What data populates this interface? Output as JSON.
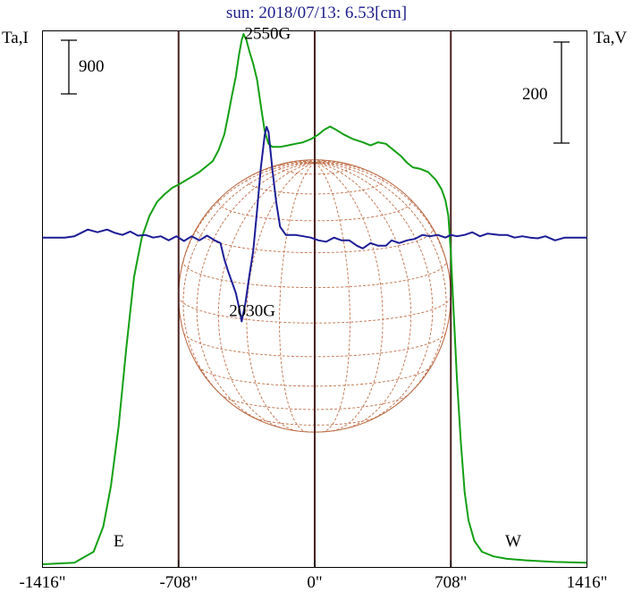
{
  "chart_data": {
    "type": "line",
    "title": "sun: 2018/07/13: 6.53[cm]",
    "left_axis_label": "Ta,I",
    "right_axis_label": "Ta,V",
    "scale_bar_left": "900",
    "scale_bar_right": "200",
    "east_label": "E",
    "west_label": "W",
    "x_ticks": [
      {
        "value": -1416,
        "label": "-1416\""
      },
      {
        "value": -708,
        "label": "-708\""
      },
      {
        "value": 0,
        "label": "0\""
      },
      {
        "value": 708,
        "label": "708\""
      },
      {
        "value": 1416,
        "label": "1416\""
      }
    ],
    "xlim": [
      -1416,
      1416
    ],
    "solar_limb_arcsec": 708,
    "vertical_lines_arcsec": [
      -708,
      0,
      708
    ],
    "annotations": [
      {
        "text": "2550G",
        "x": -245,
        "y": 1470
      },
      {
        "text": "2030G",
        "x": -325,
        "y": -580
      }
    ],
    "ylim_I": [
      0,
      3420
    ],
    "ylim_V": [
      -2440,
      1530
    ],
    "series": [
      {
        "id": "I",
        "color": "#12a012",
        "points": [
          [
            -1416,
            20
          ],
          [
            -1250,
            30
          ],
          [
            -1150,
            100
          ],
          [
            -1100,
            260
          ],
          [
            -1060,
            520
          ],
          [
            -1020,
            900
          ],
          [
            -980,
            1400
          ],
          [
            -940,
            1850
          ],
          [
            -900,
            2100
          ],
          [
            -860,
            2240
          ],
          [
            -820,
            2330
          ],
          [
            -780,
            2380
          ],
          [
            -740,
            2420
          ],
          [
            -708,
            2440
          ],
          [
            -680,
            2460
          ],
          [
            -640,
            2490
          ],
          [
            -600,
            2520
          ],
          [
            -560,
            2560
          ],
          [
            -530,
            2590
          ],
          [
            -500,
            2660
          ],
          [
            -470,
            2760
          ],
          [
            -450,
            2880
          ],
          [
            -430,
            3010
          ],
          [
            -410,
            3130
          ],
          [
            -395,
            3260
          ],
          [
            -380,
            3360
          ],
          [
            -370,
            3400
          ],
          [
            -355,
            3360
          ],
          [
            -340,
            3290
          ],
          [
            -320,
            3210
          ],
          [
            -300,
            3110
          ],
          [
            -280,
            2940
          ],
          [
            -260,
            2780
          ],
          [
            -240,
            2700
          ],
          [
            -220,
            2680
          ],
          [
            -180,
            2680
          ],
          [
            -140,
            2690
          ],
          [
            -100,
            2700
          ],
          [
            -60,
            2710
          ],
          [
            -20,
            2730
          ],
          [
            20,
            2760
          ],
          [
            50,
            2790
          ],
          [
            80,
            2810
          ],
          [
            110,
            2790
          ],
          [
            150,
            2760
          ],
          [
            200,
            2730
          ],
          [
            250,
            2710
          ],
          [
            290,
            2690
          ],
          [
            330,
            2710
          ],
          [
            370,
            2700
          ],
          [
            410,
            2660
          ],
          [
            450,
            2620
          ],
          [
            480,
            2580
          ],
          [
            510,
            2550
          ],
          [
            550,
            2540
          ],
          [
            590,
            2520
          ],
          [
            630,
            2470
          ],
          [
            660,
            2410
          ],
          [
            680,
            2340
          ],
          [
            695,
            2240
          ],
          [
            708,
            2000
          ],
          [
            720,
            1700
          ],
          [
            740,
            1200
          ],
          [
            760,
            800
          ],
          [
            780,
            480
          ],
          [
            800,
            300
          ],
          [
            830,
            170
          ],
          [
            870,
            100
          ],
          [
            930,
            70
          ],
          [
            1000,
            55
          ],
          [
            1100,
            45
          ],
          [
            1250,
            35
          ],
          [
            1416,
            30
          ]
        ]
      },
      {
        "id": "V",
        "color": "#1c1c96",
        "points": [
          [
            -1416,
            0
          ],
          [
            -1300,
            0
          ],
          [
            -1250,
            10
          ],
          [
            -1180,
            60
          ],
          [
            -1130,
            40
          ],
          [
            -1080,
            60
          ],
          [
            -1040,
            35
          ],
          [
            -1000,
            20
          ],
          [
            -960,
            45
          ],
          [
            -920,
            15
          ],
          [
            -880,
            20
          ],
          [
            -840,
            0
          ],
          [
            -800,
            10
          ],
          [
            -760,
            -20
          ],
          [
            -720,
            10
          ],
          [
            -680,
            -25
          ],
          [
            -640,
            10
          ],
          [
            -600,
            -20
          ],
          [
            -560,
            15
          ],
          [
            -520,
            -20
          ],
          [
            -490,
            -40
          ],
          [
            -470,
            -160
          ],
          [
            -450,
            -250
          ],
          [
            -430,
            -330
          ],
          [
            -410,
            -410
          ],
          [
            -390,
            -540
          ],
          [
            -380,
            -620
          ],
          [
            -360,
            -480
          ],
          [
            -340,
            -280
          ],
          [
            -320,
            -100
          ],
          [
            -300,
            200
          ],
          [
            -280,
            520
          ],
          [
            -260,
            760
          ],
          [
            -250,
            820
          ],
          [
            -240,
            780
          ],
          [
            -220,
            500
          ],
          [
            -200,
            260
          ],
          [
            -180,
            80
          ],
          [
            -150,
            20
          ],
          [
            -100,
            20
          ],
          [
            -60,
            10
          ],
          [
            -20,
            0
          ],
          [
            20,
            -20
          ],
          [
            60,
            -30
          ],
          [
            100,
            0
          ],
          [
            140,
            -20
          ],
          [
            180,
            -20
          ],
          [
            220,
            -60
          ],
          [
            250,
            -80
          ],
          [
            290,
            -40
          ],
          [
            330,
            -60
          ],
          [
            370,
            -60
          ],
          [
            400,
            -20
          ],
          [
            440,
            -40
          ],
          [
            480,
            -20
          ],
          [
            520,
            -10
          ],
          [
            560,
            20
          ],
          [
            600,
            10
          ],
          [
            640,
            20
          ],
          [
            680,
            0
          ],
          [
            708,
            20
          ],
          [
            740,
            10
          ],
          [
            780,
            20
          ],
          [
            820,
            40
          ],
          [
            860,
            10
          ],
          [
            900,
            30
          ],
          [
            960,
            20
          ],
          [
            1000,
            20
          ],
          [
            1040,
            0
          ],
          [
            1080,
            10
          ],
          [
            1120,
            0
          ],
          [
            1160,
            -5
          ],
          [
            1200,
            10
          ],
          [
            1250,
            -20
          ],
          [
            1300,
            0
          ],
          [
            1416,
            0
          ]
        ]
      }
    ]
  }
}
